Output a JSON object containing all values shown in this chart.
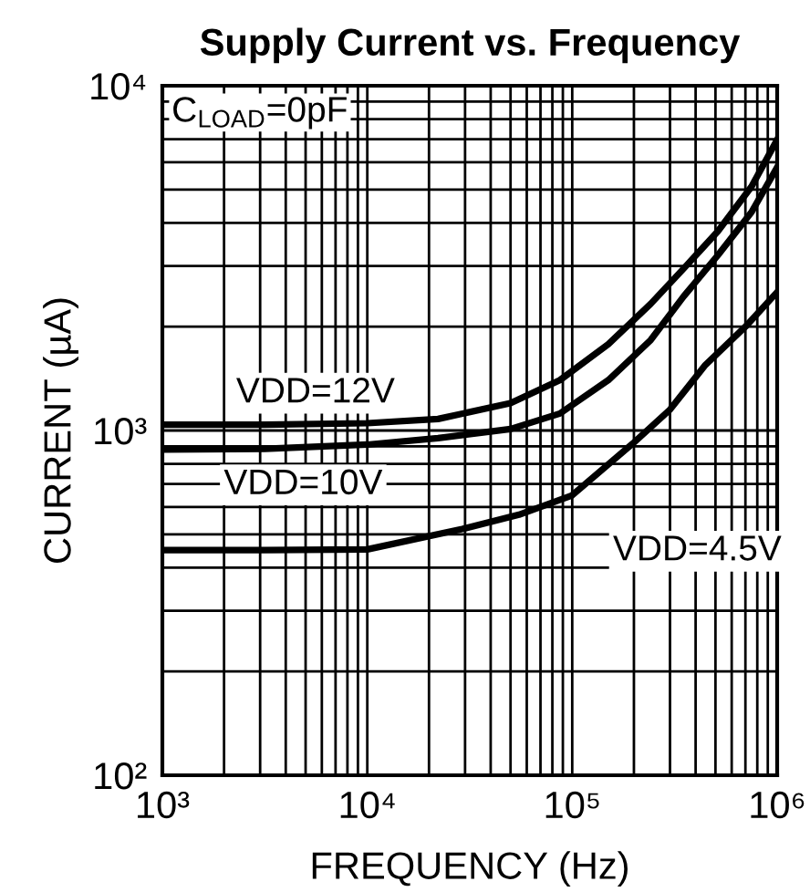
{
  "chart_data": {
    "type": "line",
    "title": "Supply Current vs. Frequency",
    "xlabel": "FREQUENCY (Hz)",
    "ylabel": "CURRENT (µA)",
    "log": "xy",
    "xlim": [
      1000,
      1000000
    ],
    "ylim": [
      100,
      10000
    ],
    "xticks": [
      {
        "value": 1000,
        "label": "10³"
      },
      {
        "value": 10000,
        "label": "10⁴"
      },
      {
        "value": 100000,
        "label": "10⁵"
      },
      {
        "value": 1000000,
        "label": "10⁶"
      }
    ],
    "yticks": [
      {
        "value": 100,
        "label": "10²"
      },
      {
        "value": 1000,
        "label": "10³"
      },
      {
        "value": 10000,
        "label": "10⁴"
      }
    ],
    "grid": true,
    "legend": false,
    "marker": "none",
    "line_style": "solid",
    "annotations": [
      "C$_{LOAD}$=0pF"
    ],
    "series": [
      {
        "name": "VDD=12V",
        "color": "#000000",
        "x": [
          1000,
          3162,
          10000,
          22130,
          50000,
          87100,
          150000,
          241500,
          350000,
          512900,
          750000,
          1000000
        ],
        "values": [
          1040,
          1040,
          1050,
          1080,
          1200,
          1400,
          1780,
          2330,
          2950,
          3780,
          5100,
          6970
        ]
      },
      {
        "name": "VDD=10V",
        "color": "#000000",
        "x": [
          1000,
          3162,
          10000,
          22130,
          50000,
          87100,
          150000,
          241500,
          350000,
          512900,
          750000,
          1000000
        ],
        "values": [
          880,
          885,
          910,
          950,
          1010,
          1120,
          1400,
          1830,
          2450,
          3220,
          4300,
          5800
        ]
      },
      {
        "name": "VDD=4.5V",
        "color": "#000000",
        "x": [
          1000,
          3162,
          10000,
          29040,
          55000,
          99300,
          196800,
          300000,
          446700,
          700000,
          1000000
        ],
        "values": [
          450,
          450,
          452,
          518,
          570,
          647,
          915,
          1150,
          1550,
          2000,
          2520
        ]
      }
    ]
  }
}
